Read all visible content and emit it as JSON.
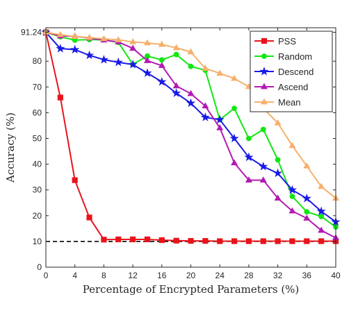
{
  "chart_data": {
    "type": "line",
    "xlabel": "Percentage of Encrypted Parameters (%)",
    "ylabel": "Accuracy (%)",
    "xlim": [
      0,
      40
    ],
    "ylim": [
      0,
      93
    ],
    "x_ticks": [
      0,
      4,
      8,
      12,
      16,
      20,
      24,
      28,
      32,
      36,
      40
    ],
    "y_ticks": [
      0,
      10,
      20,
      30,
      40,
      50,
      60,
      70,
      80,
      91.24
    ],
    "grid": false,
    "legend_position": "top-right",
    "reference_line": {
      "y": 10,
      "style": "dashed",
      "color": "#000000"
    },
    "x": [
      0,
      2,
      4,
      6,
      8,
      10,
      12,
      14,
      16,
      18,
      20,
      22,
      24,
      26,
      28,
      30,
      32,
      34,
      36,
      38,
      40
    ],
    "series": [
      {
        "name": "PSS",
        "color": "#e8141b",
        "marker": "square",
        "values": [
          91.24,
          65.9,
          33.8,
          19.3,
          10.7,
          10.8,
          10.8,
          10.8,
          10.5,
          10.3,
          10.2,
          10.2,
          10.1,
          10.1,
          10.1,
          10.1,
          10.1,
          10.1,
          10.1,
          10.1,
          10.1
        ]
      },
      {
        "name": "Random",
        "color": "#13e613",
        "marker": "circle",
        "values": [
          91.24,
          89.5,
          88.2,
          88.4,
          88.3,
          87.3,
          78.8,
          82.0,
          80.5,
          82.6,
          78.0,
          76.5,
          57.3,
          61.7,
          50.0,
          53.5,
          41.7,
          27.5,
          21.5,
          19.7,
          15.6
        ]
      },
      {
        "name": "Descend",
        "color": "#1a1ae6",
        "marker": "star",
        "values": [
          91.24,
          84.9,
          84.5,
          82.3,
          80.6,
          79.6,
          78.7,
          75.4,
          72.0,
          67.6,
          63.7,
          58.2,
          57.3,
          50.0,
          42.7,
          39.1,
          36.5,
          30.0,
          26.7,
          21.7,
          17.6
        ]
      },
      {
        "name": "Ascend",
        "color": "#b31ab3",
        "marker": "triangle",
        "values": [
          91.24,
          89.8,
          89.7,
          89.0,
          88.2,
          87.5,
          85.0,
          80.2,
          78.3,
          70.4,
          67.4,
          62.6,
          54.1,
          40.5,
          33.8,
          33.8,
          26.8,
          21.8,
          19.0,
          14.3,
          11.4
        ]
      },
      {
        "name": "Mean",
        "color": "#f5b06c",
        "marker": "triangle",
        "values": [
          91.24,
          90.3,
          89.6,
          89.2,
          88.7,
          88.3,
          87.5,
          87.1,
          86.5,
          85.2,
          83.6,
          77.2,
          75.3,
          73.3,
          70.1,
          61.7,
          56.0,
          47.2,
          39.3,
          31.3,
          26.8
        ]
      }
    ]
  }
}
